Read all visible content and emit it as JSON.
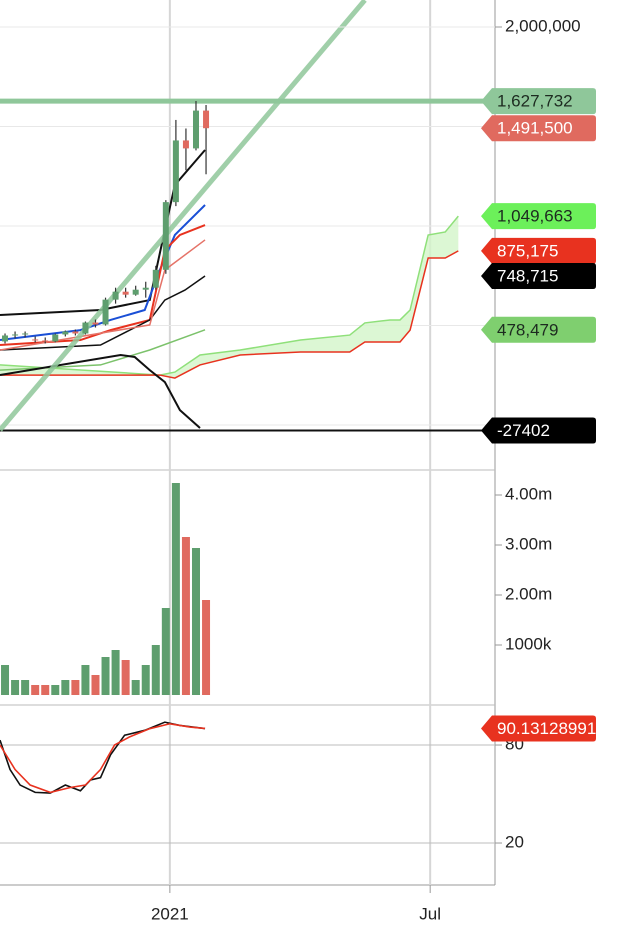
{
  "chart_data": [
    {
      "type": "candlestick",
      "xlim": [
        0,
        49.25
      ],
      "ylim": [
        -226000,
        2135700
      ],
      "yticks": [
        {
          "value": 2000000,
          "label": "2,000,000"
        }
      ],
      "ygrid": [
        1500000,
        1000000,
        500000,
        0
      ],
      "up_color": "#5e9e6e",
      "down_color": "#e06a5f",
      "candles": {
        "x": [
          0.5,
          1.5,
          2.5,
          3.5,
          4.5,
          5.5,
          6.5,
          7.5,
          8.5,
          9.5,
          10.5,
          11.5,
          12.5,
          13.5,
          14.5,
          15.5,
          16.5,
          17.5,
          18.5,
          19.5,
          20.5
        ],
        "open": [
          420000,
          450000,
          455000,
          430000,
          425000,
          420000,
          455000,
          470000,
          460000,
          515000,
          505000,
          630000,
          670000,
          655000,
          680000,
          690000,
          780000,
          1120000,
          1430000,
          1390000,
          1580000
        ],
        "high": [
          460000,
          470000,
          470000,
          445000,
          440000,
          460000,
          475000,
          480000,
          520000,
          530000,
          640000,
          690000,
          690000,
          700000,
          720000,
          800000,
          1130000,
          1533000,
          1490000,
          1628000,
          1608000
        ],
        "low": [
          410000,
          435000,
          440000,
          415000,
          410000,
          415000,
          445000,
          450000,
          455000,
          490000,
          500000,
          610000,
          640000,
          650000,
          640000,
          680000,
          760000,
          1100000,
          1280000,
          1380000,
          1260000
        ],
        "close": [
          450000,
          455000,
          460000,
          425000,
          420000,
          455000,
          470000,
          460000,
          515000,
          505000,
          630000,
          670000,
          655000,
          680000,
          690000,
          780000,
          1120000,
          1430000,
          1390000,
          1580000,
          1491500
        ]
      },
      "cloud": {
        "fill": "#d3f5c9",
        "upper_color": "#8fe07a",
        "lower_color": "#e8321f",
        "x": [
          0,
          15.9,
          17.4,
          19.9,
          23.9,
          29.9,
          34.8,
          36.3,
          38.8,
          39.8,
          40.8,
          42.6,
          44.3,
          45.6
        ],
        "upper": [
          302000,
          251000,
          266000,
          352000,
          377000,
          427000,
          452000,
          513000,
          528000,
          528000,
          578000,
          955000,
          970000,
          1049663
        ],
        "lower": [
          251000,
          251000,
          236000,
          302000,
          352000,
          367000,
          367000,
          417000,
          417000,
          417000,
          477000,
          839000,
          839000,
          875175
        ]
      },
      "lines": [
        {
          "color": "#111111",
          "width": 2,
          "x": [
            0,
            10,
            14.9,
            16.4,
            17.4,
            20.4
          ],
          "values": [
            553000,
            578000,
            628000,
            980000,
            1206000,
            1382000
          ]
        },
        {
          "color": "#1a4fd6",
          "width": 2,
          "x": [
            0,
            8,
            11,
            14.4,
            15.9,
            17.4,
            20.4
          ],
          "values": [
            427000,
            477000,
            528000,
            578000,
            779000,
            955000,
            1105500
          ]
        },
        {
          "color": "#e8321f",
          "width": 2,
          "x": [
            0,
            8,
            11,
            14.9,
            16.4,
            17.9,
            20.4
          ],
          "values": [
            402000,
            427000,
            477000,
            528000,
            879000,
            955000,
            1005000
          ]
        },
        {
          "color": "#111111",
          "width": 1.5,
          "x": [
            0,
            10,
            14.9,
            16.4,
            18.4,
            20.4
          ],
          "values": [
            377000,
            402000,
            528000,
            628000,
            678000,
            748715
          ]
        },
        {
          "color": "#e57368",
          "width": 1.5,
          "x": [
            0,
            14.9,
            16.4,
            20.4
          ],
          "values": [
            377000,
            503000,
            779000,
            930000
          ]
        },
        {
          "color": "#7cc26b",
          "width": 1.5,
          "x": [
            0,
            10,
            14.9,
            20.4
          ],
          "values": [
            276000,
            302000,
            377000,
            478479
          ]
        },
        {
          "color": "#111111",
          "width": 2,
          "x": [
            0,
            12,
            13.4,
            14.9,
            16.4,
            17.9,
            19.9
          ],
          "values": [
            251000,
            352000,
            342000,
            276000,
            216000,
            75000,
            -15000
          ]
        },
        {
          "color": "#8fc79a",
          "width": 5,
          "x": [
            0,
            36.3
          ],
          "values": [
            -25000,
            2135000
          ]
        }
      ],
      "hlines": [
        {
          "value": 1627732,
          "color": "#8fc79a",
          "width": 5
        },
        {
          "value": -27402,
          "color": "#111111",
          "width": 2
        }
      ],
      "price_tags": [
        {
          "value": 1627732,
          "label": "1,627,732",
          "color": "#8fc79a",
          "text_color": "#1d2b20"
        },
        {
          "value": 1491500,
          "label": "1,491,500",
          "color": "#e06a5f",
          "text_color": "#ffffff"
        },
        {
          "value": 1049663,
          "label": "1,049,663",
          "color": "#6cf05a",
          "text_color": "#1d2b20"
        },
        {
          "value": 875175,
          "label": "875,175",
          "color": "#e8321f",
          "text_color": "#ffffff"
        },
        {
          "value": 748715,
          "label": "748,715",
          "color": "#000000",
          "text_color": "#ffffff"
        },
        {
          "value": 478479,
          "label": "478,479",
          "color": "#7fcf6f",
          "text_color": "#1d2b20"
        },
        {
          "value": -27402,
          "color": "#000000",
          "text_color": "#ffffff"
        }
      ]
    },
    {
      "type": "bar",
      "xlim": [
        0,
        49.25
      ],
      "ylim": [
        0,
        4460000
      ],
      "yticks": [
        {
          "value": 4000000,
          "label": "4.00m"
        },
        {
          "value": 3000000,
          "label": "3.00m"
        },
        {
          "value": 2000000,
          "label": "2.00m"
        },
        {
          "value": 1000000,
          "label": "1000k"
        }
      ],
      "x": [
        0.5,
        1.5,
        2.5,
        3.5,
        4.5,
        5.5,
        6.5,
        7.5,
        8.5,
        9.5,
        10.5,
        11.5,
        12.5,
        13.5,
        14.5,
        15.5,
        16.5,
        17.5,
        18.5,
        19.5,
        20.5
      ],
      "values": [
        600000,
        300000,
        300000,
        200000,
        200000,
        200000,
        300000,
        300000,
        600000,
        400000,
        760000,
        900000,
        700000,
        300000,
        600000,
        1000000,
        1740000,
        4240000,
        3160000,
        2940000,
        1900000
      ],
      "colors": [
        "#5e9e6e",
        "#5e9e6e",
        "#5e9e6e",
        "#e06a5f",
        "#e06a5f",
        "#5e9e6e",
        "#5e9e6e",
        "#e06a5f",
        "#5e9e6e",
        "#e06a5f",
        "#5e9e6e",
        "#5e9e6e",
        "#e06a5f",
        "#5e9e6e",
        "#5e9e6e",
        "#5e9e6e",
        "#5e9e6e",
        "#5e9e6e",
        "#e06a5f",
        "#5e9e6e",
        "#e06a5f"
      ]
    },
    {
      "type": "line",
      "xlim": [
        0,
        49.25
      ],
      "ylim": [
        -5.7,
        104.5
      ],
      "yticks": [
        80,
        20
      ],
      "xticks": [
        {
          "value": 16.9,
          "label": "2021"
        },
        {
          "value": 42.8,
          "label": "Jul"
        }
      ],
      "series": [
        {
          "color": "#111111",
          "x": [
            0,
            1,
            2,
            3.5,
            5,
            6.5,
            8,
            9,
            10,
            11,
            12.4,
            14.4,
            16.4,
            17.9,
            20.4
          ],
          "values": [
            83,
            65,
            55.5,
            51,
            50.6,
            55.5,
            52,
            58.6,
            60,
            74,
            86,
            89,
            94,
            92,
            90.1
          ]
        },
        {
          "color": "#e8321f",
          "x": [
            0,
            1.5,
            3,
            5,
            7,
            8.5,
            10,
            11.4,
            12.9,
            14.9,
            16.9,
            18.9,
            20.4
          ],
          "values": [
            80,
            65,
            55.5,
            51,
            54,
            55.5,
            65,
            80,
            85,
            90,
            93,
            91,
            90.13128991
          ]
        }
      ],
      "price_tags": [
        {
          "value": 90.13128991,
          "color": "#e8321f",
          "text_color": "#ffffff"
        }
      ]
    }
  ]
}
